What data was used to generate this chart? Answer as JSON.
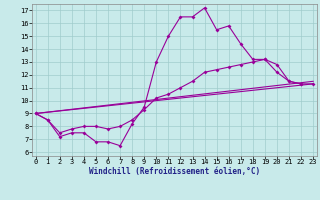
{
  "bg_color": "#c8eaea",
  "grid_color": "#a0cccc",
  "line_color": "#990099",
  "markersize": 2.0,
  "linewidth": 0.8,
  "xlabel": "Windchill (Refroidissement éolien,°C)",
  "xlabel_fontsize": 5.5,
  "tick_fontsize": 5.0,
  "ylabel_ticks": [
    6,
    7,
    8,
    9,
    10,
    11,
    12,
    13,
    14,
    15,
    16,
    17
  ],
  "xlabel_ticks": [
    0,
    1,
    2,
    3,
    4,
    5,
    6,
    7,
    8,
    9,
    10,
    11,
    12,
    13,
    14,
    15,
    16,
    17,
    18,
    19,
    20,
    21,
    22,
    23
  ],
  "xlim": [
    -0.3,
    23.3
  ],
  "ylim": [
    5.7,
    17.5
  ],
  "curve1_x": [
    0,
    1,
    2,
    3,
    4,
    5,
    6,
    7,
    8,
    9,
    10,
    11,
    12,
    13,
    14,
    15,
    16,
    17,
    18,
    19,
    20,
    21,
    22
  ],
  "curve1_y": [
    9.0,
    8.5,
    7.2,
    7.5,
    7.5,
    6.8,
    6.8,
    6.5,
    8.2,
    9.5,
    13.0,
    15.0,
    16.5,
    16.5,
    17.2,
    15.5,
    15.8,
    14.4,
    13.2,
    13.2,
    12.2,
    11.5,
    11.3
  ],
  "curve2_x": [
    0,
    1,
    2,
    3,
    4,
    5,
    6,
    7,
    8,
    9,
    10,
    11,
    12,
    13,
    14,
    15,
    16,
    17,
    18,
    19,
    20,
    21,
    22,
    23
  ],
  "curve2_y": [
    9.0,
    8.5,
    7.5,
    7.8,
    8.0,
    8.0,
    7.8,
    8.0,
    8.5,
    9.3,
    10.2,
    10.5,
    11.0,
    11.5,
    12.2,
    12.4,
    12.6,
    12.8,
    13.0,
    13.2,
    12.8,
    11.5,
    11.3,
    11.3
  ],
  "line1_x": [
    0,
    23
  ],
  "line1_y": [
    9.0,
    11.5
  ],
  "line2_x": [
    0,
    23
  ],
  "line2_y": [
    9.0,
    11.3
  ]
}
